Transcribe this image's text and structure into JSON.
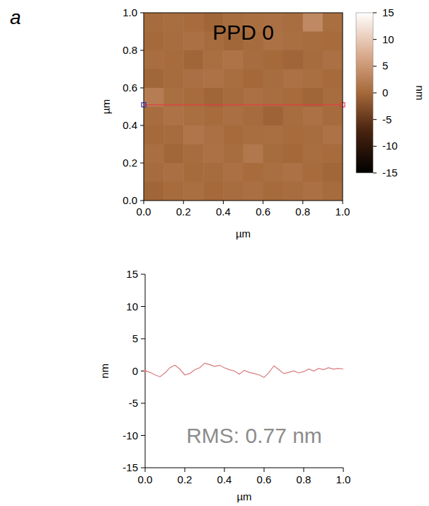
{
  "panel_label": "a",
  "chart_data": [
    {
      "type": "heatmap",
      "title": "PPD 0",
      "x_label": "µm",
      "y_label": "µm",
      "xlim": [
        0,
        1
      ],
      "ylim": [
        0,
        1
      ],
      "xticks": [
        {
          "value": 0,
          "label": "0.0"
        },
        0.2,
        0.4,
        0.6,
        0.8,
        {
          "value": 1,
          "label": "1.0"
        }
      ],
      "yticks": [
        {
          "value": 0,
          "label": "0.0"
        },
        0.2,
        0.4,
        0.6,
        0.8,
        {
          "value": 1,
          "label": "1.0"
        }
      ],
      "cells": [
        [
          0.3,
          0.5,
          0.2,
          -0.3,
          0.4,
          0.6,
          0.8,
          0.5,
          3.5,
          0.6
        ],
        [
          0.0,
          0.4,
          0.8,
          0.3,
          -0.2,
          0.3,
          0.9,
          0.6,
          0.4,
          0.2
        ],
        [
          0.5,
          0.2,
          -0.3,
          0.6,
          1.2,
          0.4,
          0.0,
          -0.4,
          0.3,
          0.8
        ],
        [
          -0.2,
          0.3,
          0.7,
          1.0,
          0.5,
          -0.1,
          0.4,
          0.9,
          0.6,
          0.1
        ],
        [
          2.2,
          0.6,
          0.2,
          -0.3,
          0.3,
          0.8,
          0.5,
          0.2,
          -0.3,
          0.4
        ],
        [
          0.4,
          1.0,
          0.6,
          0.2,
          0.7,
          0.3,
          -0.5,
          0.4,
          0.9,
          0.3
        ],
        [
          0.0,
          0.3,
          1.4,
          0.8,
          0.1,
          0.5,
          0.6,
          0.2,
          0.4,
          1.1
        ],
        [
          0.6,
          -0.2,
          0.4,
          0.9,
          0.4,
          1.6,
          0.3,
          -0.1,
          0.5,
          0.2
        ],
        [
          0.3,
          0.7,
          0.1,
          0.3,
          0.8,
          0.2,
          0.6,
          0.9,
          0.2,
          -0.2
        ],
        [
          -0.3,
          0.2,
          0.6,
          0.0,
          0.4,
          0.7,
          0.1,
          0.4,
          0.8,
          0.3
        ]
      ],
      "color_range": [
        -15,
        15
      ],
      "color_ticks": [
        -15,
        -10,
        -5,
        0,
        5,
        10,
        15
      ],
      "colorbar_label": "nm",
      "profile_line": {
        "y": 0.51,
        "x": [
          0,
          1
        ],
        "color": "#e04040"
      }
    },
    {
      "type": "line",
      "x_label": "µm",
      "y_label": "nm",
      "annotation": "RMS: 0.77 nm",
      "color": "#d77a7a",
      "xlim": [
        0,
        1
      ],
      "ylim": [
        -15,
        15
      ],
      "xticks": [
        {
          "value": 0,
          "label": "0.0"
        },
        0.2,
        0.4,
        0.6,
        0.8,
        {
          "value": 1,
          "label": "1.0"
        }
      ],
      "yticks": [
        -15,
        -10,
        -5,
        0,
        5,
        10,
        15
      ],
      "x": [
        0,
        0.025,
        0.05,
        0.075,
        0.1,
        0.125,
        0.15,
        0.175,
        0.2,
        0.225,
        0.25,
        0.275,
        0.3,
        0.325,
        0.35,
        0.375,
        0.4,
        0.425,
        0.45,
        0.475,
        0.5,
        0.525,
        0.55,
        0.575,
        0.6,
        0.625,
        0.65,
        0.675,
        0.7,
        0.725,
        0.75,
        0.775,
        0.8,
        0.825,
        0.85,
        0.875,
        0.9,
        0.925,
        0.95,
        0.975,
        1
      ],
      "values": [
        0,
        -0.2,
        -0.6,
        -0.9,
        -0.3,
        0.5,
        0.9,
        0.3,
        -0.6,
        -0.4,
        0.2,
        0.5,
        1.2,
        1.0,
        0.7,
        0.9,
        0.5,
        0.2,
        0.0,
        -0.5,
        0.1,
        -0.2,
        -0.4,
        -0.6,
        -1.0,
        -0.2,
        0.8,
        0.2,
        -0.4,
        -0.2,
        0.0,
        -0.3,
        -0.1,
        0.3,
        0.0,
        0.4,
        0.2,
        0.5,
        0.3,
        0.4,
        0.3
      ]
    }
  ]
}
